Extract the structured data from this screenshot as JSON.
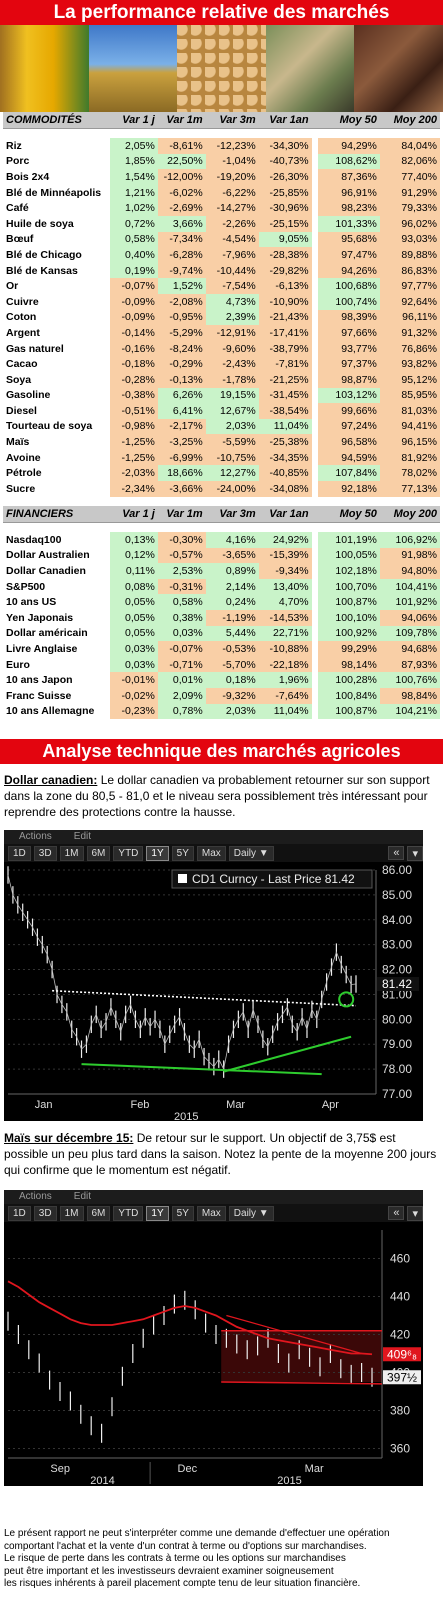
{
  "header": {
    "title": "La performance relative des marchés"
  },
  "columns": [
    "Var 1 j",
    "Var 1m",
    "Var 3m",
    "Var 1an",
    "Moy 50",
    "Moy 200"
  ],
  "commodities": {
    "title": "COMMODITÉS",
    "rows": [
      {
        "name": "Riz",
        "v": [
          "2,05%",
          "-8,61%",
          "-12,23%",
          "-34,30%",
          "94,29%",
          "84,04%"
        ]
      },
      {
        "name": "Porc",
        "v": [
          "1,85%",
          "22,50%",
          "-1,04%",
          "-40,73%",
          "108,62%",
          "82,06%"
        ]
      },
      {
        "name": "Bois 2x4",
        "v": [
          "1,54%",
          "-12,00%",
          "-19,20%",
          "-26,30%",
          "87,36%",
          "77,40%"
        ]
      },
      {
        "name": "Blé de Minnéapolis",
        "v": [
          "1,21%",
          "-6,02%",
          "-6,22%",
          "-25,85%",
          "96,91%",
          "91,29%"
        ]
      },
      {
        "name": "Café",
        "v": [
          "1,02%",
          "-2,69%",
          "-14,27%",
          "-30,96%",
          "98,23%",
          "79,33%"
        ]
      },
      {
        "name": "Huile de soya",
        "v": [
          "0,72%",
          "3,66%",
          "-2,26%",
          "-25,15%",
          "101,33%",
          "96,02%"
        ]
      },
      {
        "name": "Bœuf",
        "v": [
          "0,58%",
          "-7,34%",
          "-4,54%",
          "9,05%",
          "95,68%",
          "93,03%"
        ]
      },
      {
        "name": "Blé de Chicago",
        "v": [
          "0,40%",
          "-6,28%",
          "-7,96%",
          "-28,38%",
          "97,47%",
          "89,88%"
        ]
      },
      {
        "name": "Blé de Kansas",
        "v": [
          "0,19%",
          "-9,74%",
          "-10,44%",
          "-29,82%",
          "94,26%",
          "86,83%"
        ]
      },
      {
        "name": "Or",
        "v": [
          "-0,07%",
          "1,52%",
          "-7,54%",
          "-6,13%",
          "100,68%",
          "97,77%"
        ]
      },
      {
        "name": "Cuivre",
        "v": [
          "-0,09%",
          "-2,08%",
          "4,73%",
          "-10,90%",
          "100,74%",
          "92,64%"
        ]
      },
      {
        "name": "Coton",
        "v": [
          "-0,09%",
          "-0,95%",
          "2,39%",
          "-21,43%",
          "98,39%",
          "96,11%"
        ]
      },
      {
        "name": "Argent",
        "v": [
          "-0,14%",
          "-5,29%",
          "-12,91%",
          "-17,41%",
          "97,66%",
          "91,32%"
        ]
      },
      {
        "name": "Gas naturel",
        "v": [
          "-0,16%",
          "-8,24%",
          "-9,60%",
          "-38,79%",
          "93,77%",
          "76,86%"
        ]
      },
      {
        "name": "Cacao",
        "v": [
          "-0,18%",
          "-0,29%",
          "-2,43%",
          "-7,81%",
          "97,37%",
          "93,82%"
        ]
      },
      {
        "name": "Soya",
        "v": [
          "-0,28%",
          "-0,13%",
          "-1,78%",
          "-21,25%",
          "98,87%",
          "95,12%"
        ]
      },
      {
        "name": "Gasoline",
        "v": [
          "-0,38%",
          "6,26%",
          "19,15%",
          "-31,45%",
          "103,12%",
          "85,95%"
        ]
      },
      {
        "name": "Diesel",
        "v": [
          "-0,51%",
          "6,41%",
          "12,67%",
          "-38,54%",
          "99,66%",
          "81,03%"
        ]
      },
      {
        "name": "Tourteau de soya",
        "v": [
          "-0,98%",
          "-2,17%",
          "2,03%",
          "11,04%",
          "97,24%",
          "94,41%"
        ]
      },
      {
        "name": "Maïs",
        "v": [
          "-1,25%",
          "-3,25%",
          "-5,59%",
          "-25,38%",
          "96,58%",
          "96,15%"
        ]
      },
      {
        "name": "Avoine",
        "v": [
          "-1,25%",
          "-6,99%",
          "-10,75%",
          "-34,35%",
          "94,59%",
          "81,92%"
        ]
      },
      {
        "name": "Pétrole",
        "v": [
          "-2,03%",
          "18,66%",
          "12,27%",
          "-40,85%",
          "107,84%",
          "78,02%"
        ]
      },
      {
        "name": "Sucre",
        "v": [
          "-2,34%",
          "-3,66%",
          "-24,00%",
          "-34,08%",
          "92,18%",
          "77,13%"
        ]
      }
    ]
  },
  "financials": {
    "title": "FINANCIERS",
    "rows": [
      {
        "name": "Nasdaq100",
        "v": [
          "0,13%",
          "-0,30%",
          "4,16%",
          "24,92%",
          "101,19%",
          "106,92%"
        ]
      },
      {
        "name": "Dollar Australien",
        "v": [
          "0,12%",
          "-0,57%",
          "-3,65%",
          "-15,39%",
          "100,05%",
          "91,98%"
        ]
      },
      {
        "name": "Dollar Canadien",
        "v": [
          "0,11%",
          "2,53%",
          "0,89%",
          "-9,34%",
          "102,18%",
          "94,80%"
        ]
      },
      {
        "name": "S&P500",
        "v": [
          "0,08%",
          "-0,31%",
          "2,14%",
          "13,40%",
          "100,70%",
          "104,41%"
        ]
      },
      {
        "name": "10 ans US",
        "v": [
          "0,05%",
          "0,58%",
          "0,24%",
          "4,70%",
          "100,87%",
          "101,92%"
        ]
      },
      {
        "name": "Yen Japonais",
        "v": [
          "0,05%",
          "0,38%",
          "-1,19%",
          "-14,53%",
          "100,10%",
          "94,06%"
        ]
      },
      {
        "name": "Dollar américain",
        "v": [
          "0,05%",
          "0,03%",
          "5,44%",
          "22,71%",
          "100,92%",
          "109,78%"
        ]
      },
      {
        "name": "Livre Anglaise",
        "v": [
          "0,03%",
          "-0,07%",
          "-0,53%",
          "-10,88%",
          "99,29%",
          "94,68%"
        ]
      },
      {
        "name": "Euro",
        "v": [
          "0,03%",
          "-0,71%",
          "-5,70%",
          "-22,18%",
          "98,14%",
          "87,93%"
        ]
      },
      {
        "name": "10 ans Japon",
        "v": [
          "-0,01%",
          "0,01%",
          "0,18%",
          "1,96%",
          "100,28%",
          "100,76%"
        ]
      },
      {
        "name": "Franc Suisse",
        "v": [
          "-0,02%",
          "2,09%",
          "-9,32%",
          "-7,64%",
          "100,84%",
          "98,84%"
        ]
      },
      {
        "name": "10 ans Allemagne",
        "v": [
          "-0,23%",
          "0,78%",
          "2,03%",
          "11,04%",
          "100,87%",
          "104,21%"
        ]
      }
    ]
  },
  "analysis": {
    "title": "Analyse technique des marchés agricoles",
    "p1_lead": "Dollar canadien:",
    "p1_text": " Le dollar canadien va probablement retourner sur son support dans la zone du 80,5 - 81,0 et le niveau sera possiblement très intéressant pour reprendre des protections contre la hausse.",
    "p2_lead": "Maïs sur décembre 15:",
    "p2_text": " De retour sur le support. Un objectif de 3,75$ est possible un peu plus tard dans la saison. Notez la pente de la moyenne 200 jours qui confirme que le momentum est négatif."
  },
  "toolbar": {
    "actions": "Actions",
    "edit": "Edit",
    "periods": [
      "1D",
      "3D",
      "1M",
      "6M",
      "YTD",
      "1Y",
      "5Y",
      "Max"
    ],
    "selected": "1Y",
    "interval": "Daily ▼",
    "back": "«"
  },
  "chart_data": [
    {
      "type": "line",
      "legend": "CD1 Curncy - Last Price 81.42",
      "last_label": "81.42",
      "x_ticks": [
        "Jan",
        "Feb",
        "Mar",
        "Apr"
      ],
      "year_label": "2015",
      "y_ticks": [
        "86.00",
        "85.00",
        "84.00",
        "83.00",
        "82.00",
        "81.00",
        "80.00",
        "79.00",
        "78.00",
        "77.00"
      ],
      "ylim": [
        77,
        86
      ],
      "x": [
        0,
        5,
        10,
        15,
        20,
        25,
        30,
        35,
        40,
        45,
        50,
        55,
        60,
        65,
        70,
        75,
        80,
        85,
        90,
        95,
        100,
        105,
        110,
        115,
        120,
        125,
        130,
        135,
        140,
        145,
        150,
        155,
        160,
        165,
        170,
        175,
        180,
        185,
        190,
        195,
        200,
        205,
        210,
        215,
        220,
        225,
        230,
        235,
        240,
        245,
        250,
        255,
        260,
        265,
        270,
        275,
        280,
        285,
        290,
        295,
        300,
        305,
        310,
        315,
        320,
        325,
        330,
        335,
        340,
        345,
        350,
        355
      ],
      "values": [
        85.8,
        85.0,
        84.6,
        84.3,
        84.0,
        83.7,
        83.3,
        83.0,
        82.6,
        82.0,
        81.0,
        80.6,
        80.3,
        79.6,
        79.3,
        78.8,
        79.0,
        79.8,
        80.2,
        79.6,
        79.9,
        80.5,
        80.0,
        79.5,
        80.2,
        80.6,
        80.0,
        79.6,
        80.1,
        79.7,
        80.0,
        79.6,
        79.0,
        79.4,
        79.8,
        80.1,
        79.5,
        79.0,
        78.8,
        79.2,
        78.5,
        78.3,
        78.1,
        78.4,
        78.0,
        79.0,
        79.6,
        80.0,
        80.3,
        79.6,
        80.4,
        79.8,
        79.2,
        78.9,
        79.4,
        79.9,
        80.2,
        80.5,
        79.8,
        79.5,
        80.1,
        79.6,
        80.4,
        80.0,
        80.8,
        81.5,
        82.1,
        82.7,
        82.2,
        81.8,
        81.4,
        81.42
      ],
      "support_levels": [
        81.0,
        78.2
      ]
    },
    {
      "type": "line",
      "x_ticks": [
        "Sep",
        "Dec",
        "Mar"
      ],
      "year_labels": [
        "2014",
        "2015"
      ],
      "y_ticks": [
        "460",
        "440",
        "420",
        "400",
        "380",
        "360"
      ],
      "ylim": [
        355,
        475
      ],
      "price_tag": "409⁶₈",
      "last_label": "397½",
      "x": [
        0,
        10,
        20,
        30,
        40,
        50,
        60,
        70,
        80,
        90,
        100,
        110,
        120,
        130,
        140,
        150,
        160,
        170,
        180,
        190,
        200,
        210,
        220,
        230,
        240,
        250,
        260,
        270,
        280,
        290,
        300,
        310,
        320,
        330,
        340,
        350
      ],
      "values": [
        427,
        420,
        412,
        405,
        396,
        390,
        385,
        378,
        372,
        368,
        382,
        398,
        410,
        418,
        425,
        430,
        436,
        438,
        433,
        426,
        420,
        418,
        415,
        412,
        414,
        418,
        410,
        405,
        412,
        408,
        403,
        410,
        402,
        399,
        400,
        397.5
      ],
      "moving_average_200": [
        448,
        445,
        441,
        437,
        434,
        431,
        428,
        426,
        425,
        425,
        425,
        426,
        427,
        428,
        430,
        432,
        434,
        435,
        434,
        432,
        430,
        427,
        424,
        422,
        420,
        418,
        417,
        416,
        415,
        414,
        413,
        412,
        411,
        410,
        410,
        409.6
      ]
    }
  ],
  "disclaimer": [
    "Le présent rapport ne peut s'interpréter comme une demande d'effectuer une opération",
    "comportant l'achat et la vente d'un contrat à terme ou d'options sur marchandises.",
    "Le risque de perte dans les contrats à terme ou les options sur marchandises",
    "peut être important et les investisseurs devraient examiner soigneusement",
    "les risques inhérents à pareil placement compte tenu de leur situation financière."
  ]
}
